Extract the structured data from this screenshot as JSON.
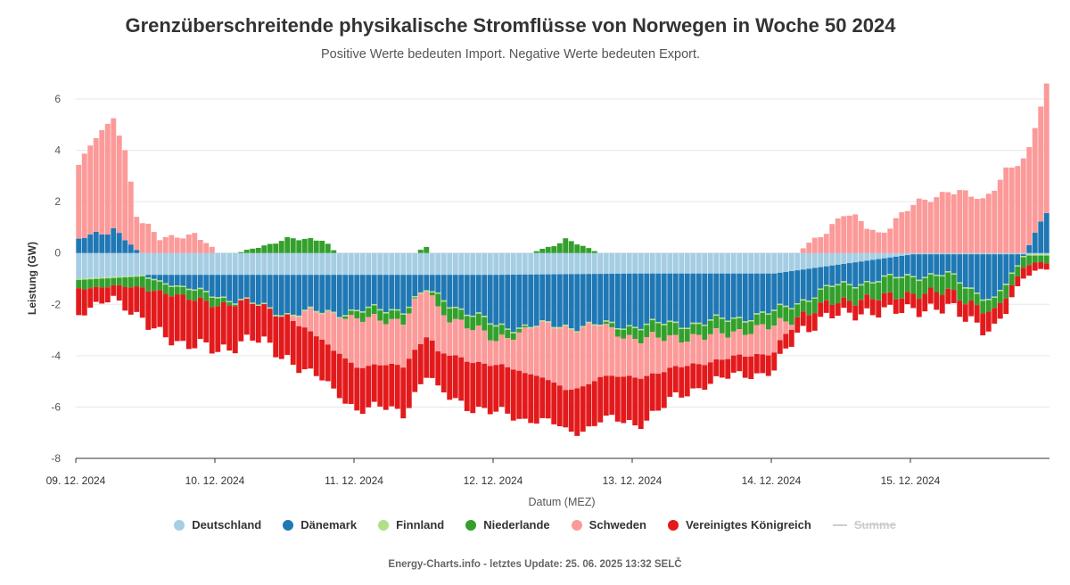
{
  "header": {
    "title": "Grenzüberschreitende physikalische Stromflüsse von Norwegen in Woche 50 2024",
    "subtitle": "Positive Werte bedeuten Import. Negative Werte bedeuten Export."
  },
  "footer": {
    "credit": "Energy-Charts.info - letztes Update: 25. 06. 2025 13:32 SELČ"
  },
  "chart_data": {
    "type": "bar",
    "stacked": true,
    "ylabel": "Leistung (GW)",
    "xlabel": "Datum (MEZ)",
    "ylim": [
      -8,
      6
    ],
    "yticks": [
      6,
      4,
      2,
      0,
      -2,
      -4,
      -6,
      -8
    ],
    "xticks": [
      "09. 12. 2024",
      "10. 12. 2024",
      "11. 12. 2024",
      "12. 12. 2024",
      "13. 12. 2024",
      "14. 12. 2024",
      "15. 12. 2024"
    ],
    "grid": true,
    "legend_position": "bottom",
    "time_resolution": "hourly",
    "hours": 168,
    "series": [
      {
        "name": "Deutschland",
        "color": "#a6cee3",
        "anchors": [
          [
            0,
            -1.0
          ],
          [
            12,
            -0.85
          ],
          [
            24,
            -0.85
          ],
          [
            48,
            -0.85
          ],
          [
            72,
            -0.85
          ],
          [
            96,
            -0.8
          ],
          [
            120,
            -0.8
          ],
          [
            144,
            -0.05
          ],
          [
            167,
            -0.05
          ]
        ]
      },
      {
        "name": "Dänemark",
        "color": "#1f78b4",
        "anchors": [
          [
            0,
            0.5
          ],
          [
            6,
            1.0
          ],
          [
            10,
            0.1
          ],
          [
            12,
            -0.1
          ],
          [
            20,
            -0.6
          ],
          [
            28,
            -1.0
          ],
          [
            36,
            -1.5
          ],
          [
            48,
            -1.4
          ],
          [
            56,
            -1.3
          ],
          [
            60,
            -0.6
          ],
          [
            72,
            -2.0
          ],
          [
            84,
            -2.0
          ],
          [
            96,
            -2.0
          ],
          [
            108,
            -1.9
          ],
          [
            120,
            -1.5
          ],
          [
            130,
            -0.8
          ],
          [
            144,
            -0.8
          ],
          [
            150,
            -0.8
          ],
          [
            158,
            -1.8
          ],
          [
            162,
            -0.5
          ],
          [
            167,
            1.7
          ]
        ]
      },
      {
        "name": "Finnland",
        "color": "#b2df8a",
        "anchors": [
          [
            0,
            -0.05
          ],
          [
            167,
            -0.05
          ]
        ]
      },
      {
        "name": "Niederlande",
        "color": "#33a02c",
        "anchors": [
          [
            0,
            -0.3
          ],
          [
            12,
            -0.4
          ],
          [
            24,
            -0.3
          ],
          [
            30,
            0.2
          ],
          [
            36,
            0.5
          ],
          [
            42,
            0.6
          ],
          [
            44,
            0.1
          ],
          [
            48,
            -0.3
          ],
          [
            56,
            -0.4
          ],
          [
            60,
            0.3
          ],
          [
            62,
            -0.5
          ],
          [
            72,
            -0.5
          ],
          [
            84,
            0.5
          ],
          [
            96,
            -0.5
          ],
          [
            108,
            -0.5
          ],
          [
            120,
            -0.5
          ],
          [
            132,
            -0.6
          ],
          [
            144,
            -0.7
          ],
          [
            156,
            -0.5
          ],
          [
            167,
            -0.3
          ]
        ]
      },
      {
        "name": "Schweden",
        "color": "#fb9a99",
        "anchors": [
          [
            0,
            3.0
          ],
          [
            4,
            3.9
          ],
          [
            6,
            4.3
          ],
          [
            8,
            3.5
          ],
          [
            10,
            1.5
          ],
          [
            14,
            0.5
          ],
          [
            20,
            0.8
          ],
          [
            24,
            0.0
          ],
          [
            36,
            0.0
          ],
          [
            44,
            -1.5
          ],
          [
            48,
            -1.8
          ],
          [
            60,
            -1.8
          ],
          [
            72,
            -1.0
          ],
          [
            84,
            -2.5
          ],
          [
            96,
            -1.5
          ],
          [
            108,
            -1.0
          ],
          [
            120,
            -1.0
          ],
          [
            124,
            0.0
          ],
          [
            132,
            1.5
          ],
          [
            138,
            0.8
          ],
          [
            144,
            1.8
          ],
          [
            150,
            2.5
          ],
          [
            156,
            2.0
          ],
          [
            160,
            3.3
          ],
          [
            164,
            3.6
          ],
          [
            167,
            5.0
          ]
        ]
      },
      {
        "name": "Vereinigtes Königreich",
        "color": "#e31a1c",
        "anchors": [
          [
            0,
            -1.1
          ],
          [
            6,
            -0.4
          ],
          [
            12,
            -1.5
          ],
          [
            18,
            -1.8
          ],
          [
            24,
            -1.8
          ],
          [
            30,
            -1.4
          ],
          [
            36,
            -1.6
          ],
          [
            48,
            -1.6
          ],
          [
            56,
            -1.8
          ],
          [
            60,
            -1.5
          ],
          [
            72,
            -1.9
          ],
          [
            84,
            -1.6
          ],
          [
            96,
            -1.8
          ],
          [
            108,
            -0.8
          ],
          [
            120,
            -0.7
          ],
          [
            130,
            -0.5
          ],
          [
            144,
            -0.6
          ],
          [
            156,
            -0.7
          ],
          [
            162,
            -0.5
          ],
          [
            167,
            -0.2
          ]
        ]
      }
    ]
  },
  "legend": {
    "items": [
      {
        "label": "Deutschland",
        "color": "#a6cee3"
      },
      {
        "label": "Dänemark",
        "color": "#1f78b4"
      },
      {
        "label": "Finnland",
        "color": "#b2df8a"
      },
      {
        "label": "Niederlande",
        "color": "#33a02c"
      },
      {
        "label": "Schweden",
        "color": "#fb9a99"
      },
      {
        "label": "Vereinigtes Königreich",
        "color": "#e31a1c"
      },
      {
        "label": "Summe",
        "color": "#cccccc",
        "hidden": true
      }
    ]
  }
}
